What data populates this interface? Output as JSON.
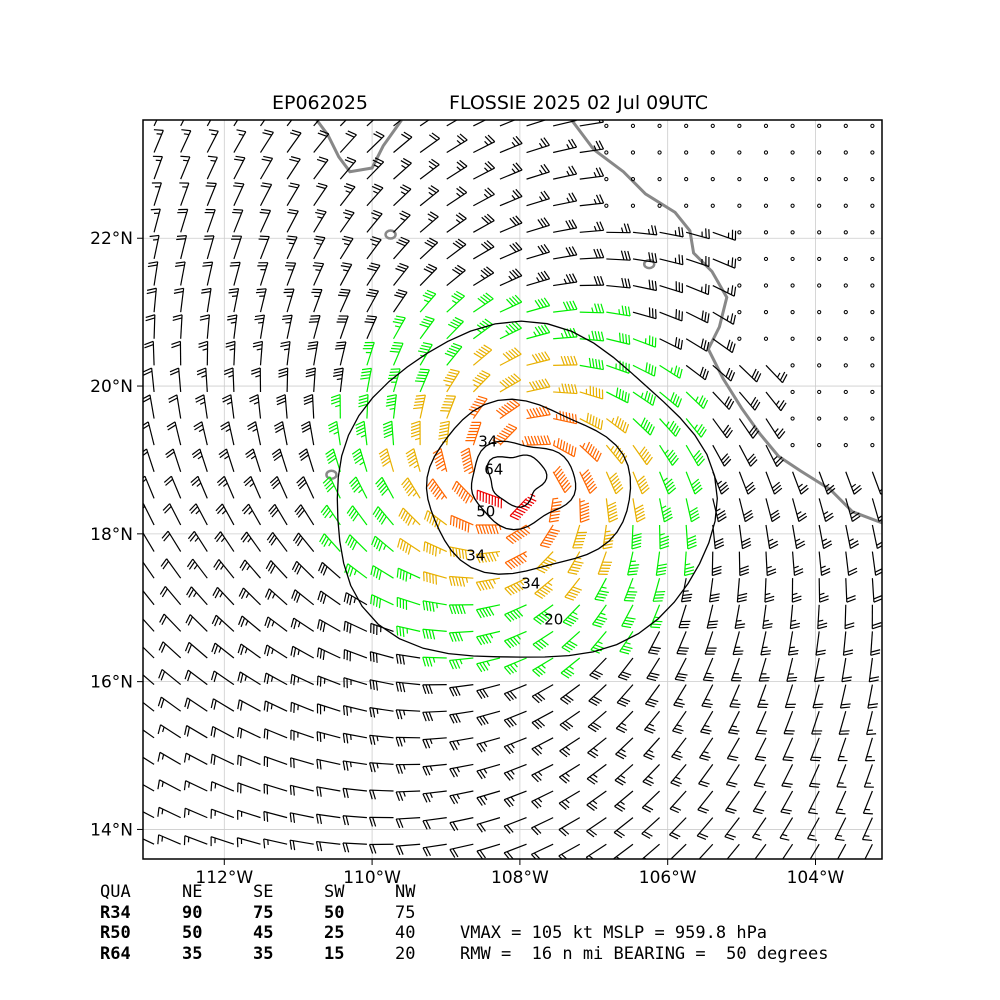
{
  "header": {
    "storm_id": "EP062025",
    "storm_title": "FLOSSIE 2025 02 Jul 09UTC"
  },
  "map": {
    "lon_range": [
      -113.1,
      -103.1
    ],
    "lat_range": [
      13.6,
      23.6
    ],
    "lon_ticks": [
      {
        "value": -112,
        "label": "112°W"
      },
      {
        "value": -110,
        "label": "110°W"
      },
      {
        "value": -108,
        "label": "108°W"
      },
      {
        "value": -106,
        "label": "106°W"
      },
      {
        "value": -104,
        "label": "104°W"
      }
    ],
    "lat_ticks": [
      {
        "value": 14,
        "label": "14°N"
      },
      {
        "value": 16,
        "label": "16°N"
      },
      {
        "value": 18,
        "label": "18°N"
      },
      {
        "value": 20,
        "label": "20°N"
      },
      {
        "value": 22,
        "label": "22°N"
      }
    ],
    "grid": true,
    "center": {
      "lon": -108.05,
      "lat": 18.75
    },
    "contours": [
      {
        "level": "20",
        "label": "20",
        "color": "#000000"
      },
      {
        "level": "34",
        "label": "34",
        "color": "#000000"
      },
      {
        "level": "50",
        "label": "50",
        "color": "#000000"
      },
      {
        "level": "64",
        "label": "64",
        "color": "#000000"
      }
    ],
    "barb_colors": {
      "calm_or_weak": "#000000",
      "ts": "#00ee00",
      "strong_ts": "#e8b000",
      "hurricane": "#ff6600",
      "major": "#ee0000"
    },
    "coastline_color": "#888888"
  },
  "wind_radii": {
    "headers": [
      "QUA",
      "NE",
      "SE",
      "SW",
      "NW"
    ],
    "rows": [
      {
        "label": "R34",
        "values": [
          "90",
          "75",
          "50",
          "75"
        ]
      },
      {
        "label": "R50",
        "values": [
          "50",
          "45",
          "25",
          "40"
        ]
      },
      {
        "label": "R64",
        "values": [
          "35",
          "35",
          "15",
          "20"
        ]
      }
    ]
  },
  "stats": {
    "line1": "VMAX = 105 kt MSLP = 959.8 hPa",
    "line2": "RMW =  16 n mi BEARING =  50 degrees"
  }
}
